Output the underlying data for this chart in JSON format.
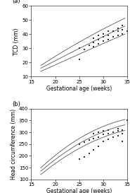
{
  "panel_a": {
    "label": "(a)",
    "ylabel": "TCD (mm)",
    "xlabel": "Gestational age (weeks)",
    "xlim": [
      15,
      35
    ],
    "ylim": [
      10,
      60
    ],
    "xticks": [
      15,
      20,
      25,
      30,
      35
    ],
    "yticks": [
      10,
      20,
      30,
      40,
      50,
      60
    ],
    "curve_upper": [
      [
        17,
        19.0
      ],
      [
        19,
        22.0
      ],
      [
        21,
        25.5
      ],
      [
        23,
        29.5
      ],
      [
        25,
        34.0
      ],
      [
        27,
        38.5
      ],
      [
        29,
        43.0
      ],
      [
        31,
        46.5
      ],
      [
        33,
        49.0
      ],
      [
        34.5,
        50.0
      ]
    ],
    "curve_mean": [
      [
        17,
        16.5
      ],
      [
        19,
        19.5
      ],
      [
        21,
        22.5
      ],
      [
        23,
        26.0
      ],
      [
        25,
        29.5
      ],
      [
        27,
        33.5
      ],
      [
        29,
        37.5
      ],
      [
        31,
        40.5
      ],
      [
        33,
        43.5
      ],
      [
        34.5,
        45.0
      ]
    ],
    "curve_lower": [
      [
        17,
        14.0
      ],
      [
        19,
        17.0
      ],
      [
        21,
        19.5
      ],
      [
        23,
        22.5
      ],
      [
        25,
        25.5
      ],
      [
        27,
        29.0
      ],
      [
        29,
        32.5
      ],
      [
        31,
        35.5
      ],
      [
        33,
        38.0
      ],
      [
        34.5,
        39.5
      ]
    ],
    "scatter_x": [
      25,
      25,
      26,
      27,
      28,
      28,
      28,
      29,
      29,
      29,
      30,
      30,
      30,
      31,
      31,
      31,
      32,
      32,
      33,
      33,
      33,
      34,
      34,
      34,
      35
    ],
    "scatter_y": [
      22,
      30,
      29,
      32,
      31,
      34,
      37,
      33,
      36,
      39,
      35,
      38,
      40,
      36,
      39,
      42,
      38,
      42,
      39,
      42,
      44,
      40,
      43,
      46,
      42
    ]
  },
  "panel_b": {
    "label": "(b)",
    "ylabel": "Head circumference (mm)",
    "xlabel": "Gestational age (weeks)",
    "xlim": [
      15,
      35
    ],
    "ylim": [
      100,
      400
    ],
    "xticks": [
      15,
      20,
      25,
      30,
      35
    ],
    "yticks": [
      100,
      150,
      200,
      250,
      300,
      350,
      400
    ],
    "curve_upper": [
      [
        17,
        155
      ],
      [
        19,
        183
      ],
      [
        21,
        213
      ],
      [
        23,
        244
      ],
      [
        25,
        273
      ],
      [
        27,
        299
      ],
      [
        29,
        320
      ],
      [
        31,
        336
      ],
      [
        33,
        346
      ],
      [
        34.5,
        350
      ]
    ],
    "curve_mean": [
      [
        17,
        140
      ],
      [
        19,
        167
      ],
      [
        21,
        195
      ],
      [
        23,
        224
      ],
      [
        25,
        252
      ],
      [
        27,
        277
      ],
      [
        29,
        297
      ],
      [
        31,
        313
      ],
      [
        33,
        323
      ],
      [
        34.5,
        328
      ]
    ],
    "curve_lower": [
      [
        17,
        125
      ],
      [
        19,
        151
      ],
      [
        21,
        178
      ],
      [
        23,
        205
      ],
      [
        25,
        231
      ],
      [
        27,
        255
      ],
      [
        29,
        274
      ],
      [
        31,
        289
      ],
      [
        33,
        299
      ],
      [
        34.5,
        305
      ]
    ],
    "scatter_x": [
      25,
      25,
      26,
      26,
      27,
      27,
      28,
      28,
      28,
      29,
      29,
      29,
      30,
      30,
      30,
      31,
      31,
      31,
      32,
      32,
      33,
      33,
      33,
      34,
      34,
      34,
      35
    ],
    "scatter_y": [
      185,
      248,
      195,
      258,
      210,
      268,
      225,
      272,
      295,
      240,
      280,
      300,
      260,
      290,
      305,
      270,
      295,
      310,
      280,
      300,
      285,
      305,
      315,
      260,
      295,
      310,
      350
    ]
  },
  "line_color": "#555555",
  "scatter_color": "#333333",
  "background_color": "#ffffff",
  "tick_fontsize": 5,
  "label_fontsize": 5.5,
  "panel_label_fontsize": 6
}
